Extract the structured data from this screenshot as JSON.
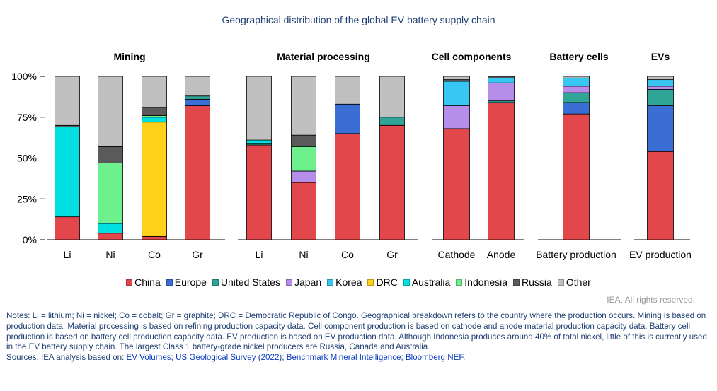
{
  "title": "Geographical distribution of the global EV battery supply chain",
  "legend": [
    {
      "name": "China",
      "color": "#e2474b"
    },
    {
      "name": "Europe",
      "color": "#3b6ed4"
    },
    {
      "name": "United States",
      "color": "#2fa497"
    },
    {
      "name": "Japan",
      "color": "#b68de8"
    },
    {
      "name": "Korea",
      "color": "#38c6f2"
    },
    {
      "name": "DRC",
      "color": "#ffd11a"
    },
    {
      "name": "Australia",
      "color": "#00e0e0"
    },
    {
      "name": "Indonesia",
      "color": "#6ef08f"
    },
    {
      "name": "Russia",
      "color": "#5a5a5a"
    },
    {
      "name": "Other",
      "color": "#c0c0c0"
    }
  ],
  "rights": "IEA. All rights reserved.",
  "notes": {
    "text": "Notes: Li = lithium; Ni = nickel; Co = cobalt; Gr = graphite; DRC = Democratic Republic of Congo. Geographical breakdown refers to the country where the production occurs. Mining is based on production data. Material processing is based on refining production capacity data. Cell component production is based on cathode and anode material production capacity data. Battery cell production is based on battery cell production capacity data. EV production is based on EV production data. Although Indonesia produces around 40% of total nickel, little of this is currently used in the EV battery supply chain. The largest Class 1 battery-grade nickel producers are Russia, Canada and Australia.",
    "sources_prefix": "Sources: IEA analysis based on: ",
    "sources": [
      "EV Volumes",
      "US Geological Survey (2022)",
      "Benchmark Mineral Intelligence",
      "Bloomberg NEF."
    ],
    "separator": "; "
  },
  "chart_data": {
    "type": "bar",
    "stacked": true,
    "title": "Geographical distribution of the global EV battery supply chain",
    "y_ticks": [
      "0%",
      "25%",
      "50%",
      "75%",
      "100%"
    ],
    "ylim": [
      0,
      100
    ],
    "series_names": [
      "China",
      "Europe",
      "United States",
      "Japan",
      "Korea",
      "DRC",
      "Australia",
      "Indonesia",
      "Russia",
      "Other"
    ],
    "panels": [
      {
        "name": "Mining",
        "categories": [
          "Li",
          "Ni",
          "Co",
          "Gr"
        ],
        "values": {
          "Li": {
            "Australia": 55,
            "China": 14,
            "Russia": 1,
            "Other": 30
          },
          "Ni": {
            "Indonesia": 37,
            "Australia": 6,
            "China": 4,
            "Russia": 10,
            "Other": 43
          },
          "Co": {
            "DRC": 70,
            "Indonesia": 1,
            "Australia": 3,
            "China": 2,
            "Russia": 5,
            "Other": 19
          },
          "Gr": {
            "China": 82,
            "United States": 2,
            "Europe": 4,
            "Other": 12
          }
        }
      },
      {
        "name": "Material processing",
        "categories": [
          "Li",
          "Ni",
          "Co",
          "Gr"
        ],
        "values": {
          "Li": {
            "China": 58,
            "Australia": 2,
            "United States": 1,
            "Other": 39
          },
          "Ni": {
            "China": 35,
            "Indonesia": 15,
            "Japan": 7,
            "Russia": 7,
            "Other": 36
          },
          "Co": {
            "China": 65,
            "Europe": 18,
            "Other": 17
          },
          "Gr": {
            "China": 70,
            "United States": 5,
            "Other": 25
          }
        }
      },
      {
        "name": "Cell components",
        "categories": [
          "Cathode",
          "Anode"
        ],
        "values": {
          "Cathode": {
            "China": 68,
            "Russia": 1,
            "Japan": 14,
            "Korea": 15,
            "Other": 2
          },
          "Anode": {
            "China": 84,
            "Russia": 1,
            "Japan": 11,
            "Korea": 3,
            "United States": 1
          }
        }
      },
      {
        "name": "Battery cells",
        "categories": [
          "Battery production"
        ],
        "values": {
          "Battery production": {
            "China": 77,
            "Europe": 7,
            "United States": 6,
            "Korea": 5,
            "Japan": 4,
            "Other": 1
          }
        }
      },
      {
        "name": "EVs",
        "categories": [
          "EV production"
        ],
        "values": {
          "EV production": {
            "China": 54,
            "Europe": 28,
            "United States": 10,
            "Korea": 4,
            "Japan": 2,
            "Other": 2
          }
        }
      }
    ]
  }
}
